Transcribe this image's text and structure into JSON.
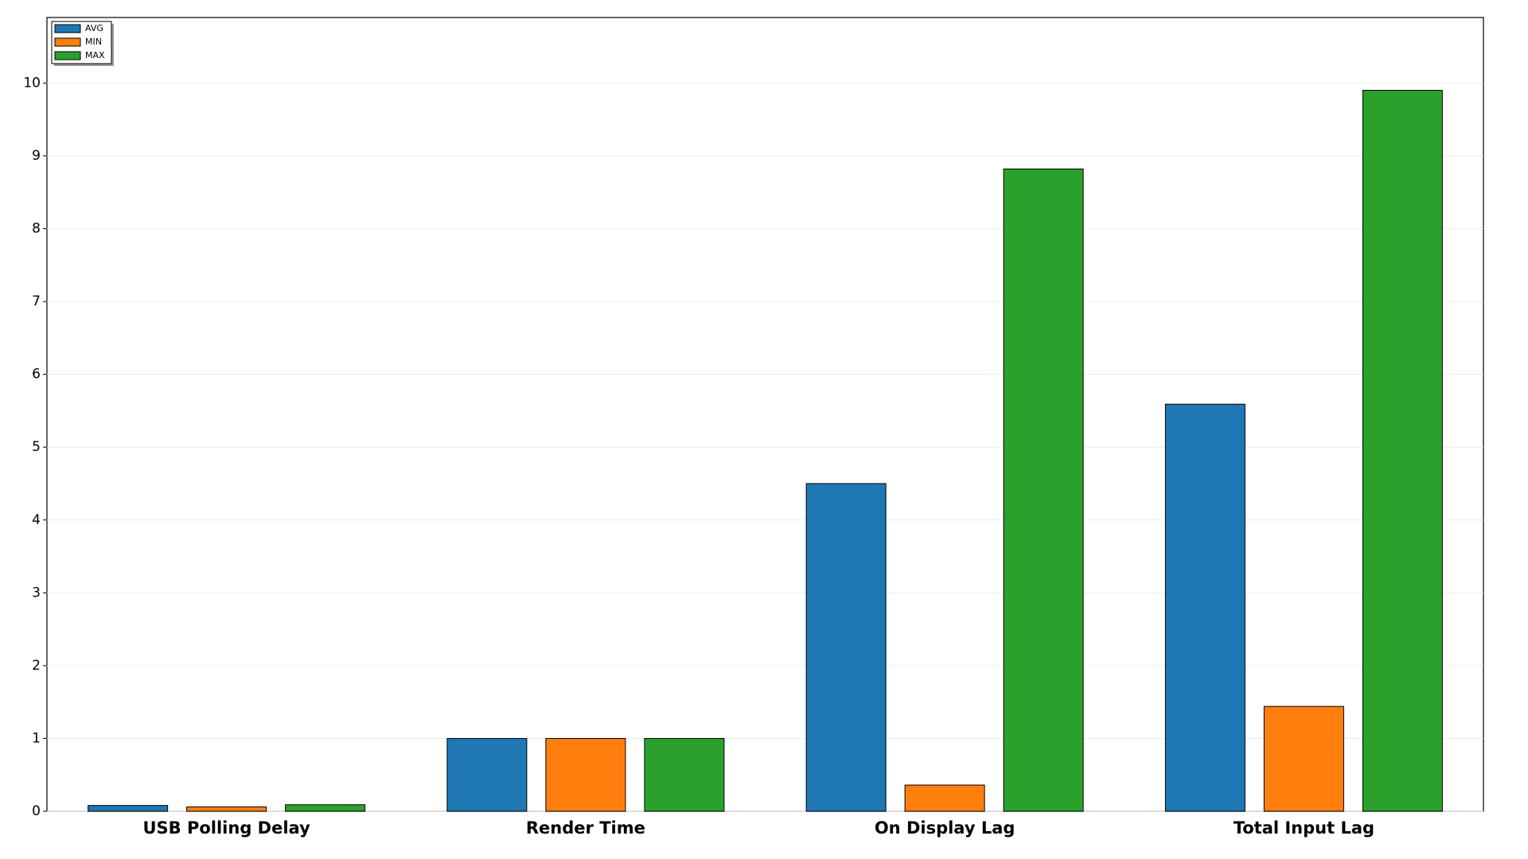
{
  "chart_data": {
    "type": "bar",
    "categories": [
      "USB Polling Delay",
      "Render Time",
      "On Display Lag",
      "Total Input Lag"
    ],
    "series": [
      {
        "name": "AVG",
        "color": "#1f77b4",
        "values": [
          0.08,
          1,
          4.5,
          5.59
        ]
      },
      {
        "name": "MIN",
        "color": "#ff7f0e",
        "values": [
          0.06,
          1,
          0.36,
          1.44
        ]
      },
      {
        "name": "MAX",
        "color": "#2ca02c",
        "values": [
          0.09,
          1,
          8.82,
          9.9
        ]
      }
    ],
    "ylim": [
      0,
      10.9
    ],
    "yticks": [
      0,
      1,
      2,
      3,
      4,
      5,
      6,
      7,
      8,
      9,
      10
    ],
    "grid": true,
    "legend": "upper-left"
  }
}
